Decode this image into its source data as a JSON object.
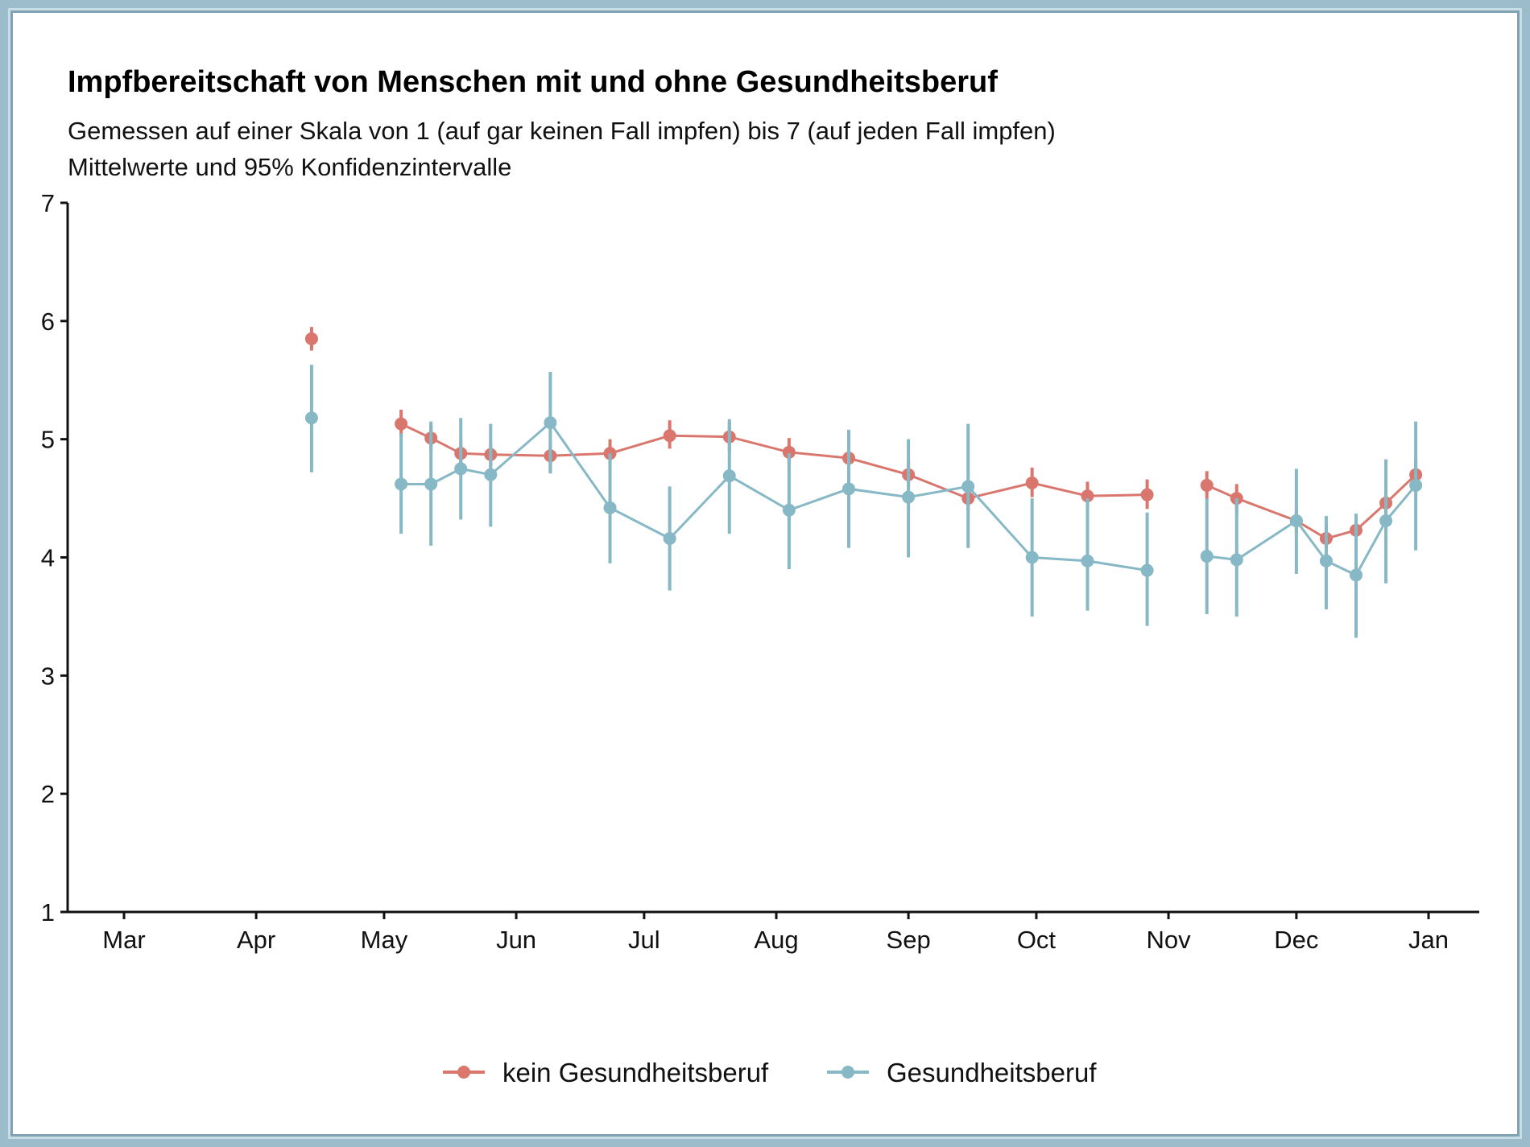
{
  "chart_data": {
    "type": "line",
    "title": "Impfbereitschaft von Menschen mit und ohne Gesundheitsberuf",
    "subtitle": [
      "Gemessen auf einer Skala von 1 (auf gar keinen Fall impfen) bis 7 (auf jeden Fall impfen)",
      "Mittelwerte und 95% Konfidenzintervalle"
    ],
    "xlabel": "",
    "ylabel": "",
    "ylim": [
      1,
      7
    ],
    "y_ticks": [
      "1",
      "2",
      "3",
      "4",
      "5",
      "6",
      "7"
    ],
    "x_ticks": [
      {
        "label": "Mar",
        "day": 0
      },
      {
        "label": "Apr",
        "day": 31
      },
      {
        "label": "May",
        "day": 61
      },
      {
        "label": "Jun",
        "day": 92
      },
      {
        "label": "Jul",
        "day": 122
      },
      {
        "label": "Aug",
        "day": 153
      },
      {
        "label": "Sep",
        "day": 184
      },
      {
        "label": "Oct",
        "day": 214
      },
      {
        "label": "Nov",
        "day": 245
      },
      {
        "label": "Dec",
        "day": 275
      },
      {
        "label": "Jan",
        "day": 306
      }
    ],
    "x_note": "day = days since Mar 1",
    "legend_position": "bottom",
    "grid": false,
    "series": [
      {
        "name": "kein Gesundheitsberuf",
        "color": "#d9776e",
        "points": [
          {
            "day": 44,
            "group": 0,
            "y": 5.85,
            "lo": 5.75,
            "hi": 5.95
          },
          {
            "day": 65,
            "group": 1,
            "y": 5.13,
            "lo": 5.02,
            "hi": 5.25
          },
          {
            "day": 72,
            "group": 1,
            "y": 5.01,
            "lo": 4.9,
            "hi": 5.12
          },
          {
            "day": 79,
            "group": 1,
            "y": 4.88,
            "lo": 4.78,
            "hi": 4.98
          },
          {
            "day": 86,
            "group": 1,
            "y": 4.87,
            "lo": 4.77,
            "hi": 4.97
          },
          {
            "day": 100,
            "group": 1,
            "y": 4.86,
            "lo": 4.73,
            "hi": 4.98
          },
          {
            "day": 114,
            "group": 1,
            "y": 4.88,
            "lo": 4.76,
            "hi": 5.0
          },
          {
            "day": 128,
            "group": 1,
            "y": 5.03,
            "lo": 4.92,
            "hi": 5.16
          },
          {
            "day": 142,
            "group": 1,
            "y": 5.02,
            "lo": 4.9,
            "hi": 5.14
          },
          {
            "day": 156,
            "group": 1,
            "y": 4.89,
            "lo": 4.78,
            "hi": 5.01
          },
          {
            "day": 170,
            "group": 1,
            "y": 4.84,
            "lo": 4.73,
            "hi": 4.95
          },
          {
            "day": 184,
            "group": 1,
            "y": 4.7,
            "lo": 4.6,
            "hi": 4.81
          },
          {
            "day": 198,
            "group": 1,
            "y": 4.5,
            "lo": 4.4,
            "hi": 4.6
          },
          {
            "day": 213,
            "group": 1,
            "y": 4.63,
            "lo": 4.51,
            "hi": 4.76
          },
          {
            "day": 226,
            "group": 1,
            "y": 4.52,
            "lo": 4.41,
            "hi": 4.64
          },
          {
            "day": 240,
            "group": 1,
            "y": 4.53,
            "lo": 4.41,
            "hi": 4.66
          },
          {
            "day": 254,
            "group": 2,
            "y": 4.61,
            "lo": 4.49,
            "hi": 4.73
          },
          {
            "day": 261,
            "group": 2,
            "y": 4.5,
            "lo": 4.39,
            "hi": 4.62
          },
          {
            "day": 275,
            "group": 2,
            "y": 4.31,
            "lo": 4.2,
            "hi": 4.42
          },
          {
            "day": 282,
            "group": 2,
            "y": 4.16,
            "lo": 4.06,
            "hi": 4.27
          },
          {
            "day": 289,
            "group": 2,
            "y": 4.23,
            "lo": 4.12,
            "hi": 4.35
          },
          {
            "day": 296,
            "group": 2,
            "y": 4.46,
            "lo": 4.35,
            "hi": 4.58
          },
          {
            "day": 303,
            "group": 2,
            "y": 4.7,
            "lo": 4.58,
            "hi": 4.83
          }
        ]
      },
      {
        "name": "Gesundheitsberuf",
        "color": "#86b8c6",
        "points": [
          {
            "day": 44,
            "group": 0,
            "y": 5.18,
            "lo": 4.72,
            "hi": 5.63
          },
          {
            "day": 65,
            "group": 1,
            "y": 4.62,
            "lo": 4.2,
            "hi": 5.05
          },
          {
            "day": 72,
            "group": 1,
            "y": 4.62,
            "lo": 4.1,
            "hi": 5.15
          },
          {
            "day": 79,
            "group": 1,
            "y": 4.75,
            "lo": 4.32,
            "hi": 5.18
          },
          {
            "day": 86,
            "group": 1,
            "y": 4.7,
            "lo": 4.26,
            "hi": 5.13
          },
          {
            "day": 100,
            "group": 1,
            "y": 5.14,
            "lo": 4.71,
            "hi": 5.57
          },
          {
            "day": 114,
            "group": 1,
            "y": 4.42,
            "lo": 3.95,
            "hi": 4.88
          },
          {
            "day": 128,
            "group": 1,
            "y": 4.16,
            "lo": 3.72,
            "hi": 4.6
          },
          {
            "day": 142,
            "group": 1,
            "y": 4.69,
            "lo": 4.2,
            "hi": 5.17
          },
          {
            "day": 156,
            "group": 1,
            "y": 4.4,
            "lo": 3.9,
            "hi": 4.88
          },
          {
            "day": 170,
            "group": 1,
            "y": 4.58,
            "lo": 4.08,
            "hi": 5.08
          },
          {
            "day": 184,
            "group": 1,
            "y": 4.51,
            "lo": 4.0,
            "hi": 5.0
          },
          {
            "day": 198,
            "group": 1,
            "y": 4.6,
            "lo": 4.08,
            "hi": 5.13
          },
          {
            "day": 213,
            "group": 1,
            "y": 4.0,
            "lo": 3.5,
            "hi": 4.5
          },
          {
            "day": 226,
            "group": 1,
            "y": 3.97,
            "lo": 3.55,
            "hi": 4.5
          },
          {
            "day": 240,
            "group": 1,
            "y": 3.89,
            "lo": 3.42,
            "hi": 4.38
          },
          {
            "day": 254,
            "group": 2,
            "y": 4.01,
            "lo": 3.52,
            "hi": 4.5
          },
          {
            "day": 261,
            "group": 2,
            "y": 3.98,
            "lo": 3.5,
            "hi": 4.5
          },
          {
            "day": 275,
            "group": 2,
            "y": 4.31,
            "lo": 3.86,
            "hi": 4.75
          },
          {
            "day": 282,
            "group": 2,
            "y": 3.97,
            "lo": 3.56,
            "hi": 4.35
          },
          {
            "day": 289,
            "group": 2,
            "y": 3.85,
            "lo": 3.32,
            "hi": 4.37
          },
          {
            "day": 296,
            "group": 2,
            "y": 4.31,
            "lo": 3.78,
            "hi": 4.83
          },
          {
            "day": 303,
            "group": 2,
            "y": 4.61,
            "lo": 4.06,
            "hi": 5.15
          }
        ]
      }
    ]
  }
}
